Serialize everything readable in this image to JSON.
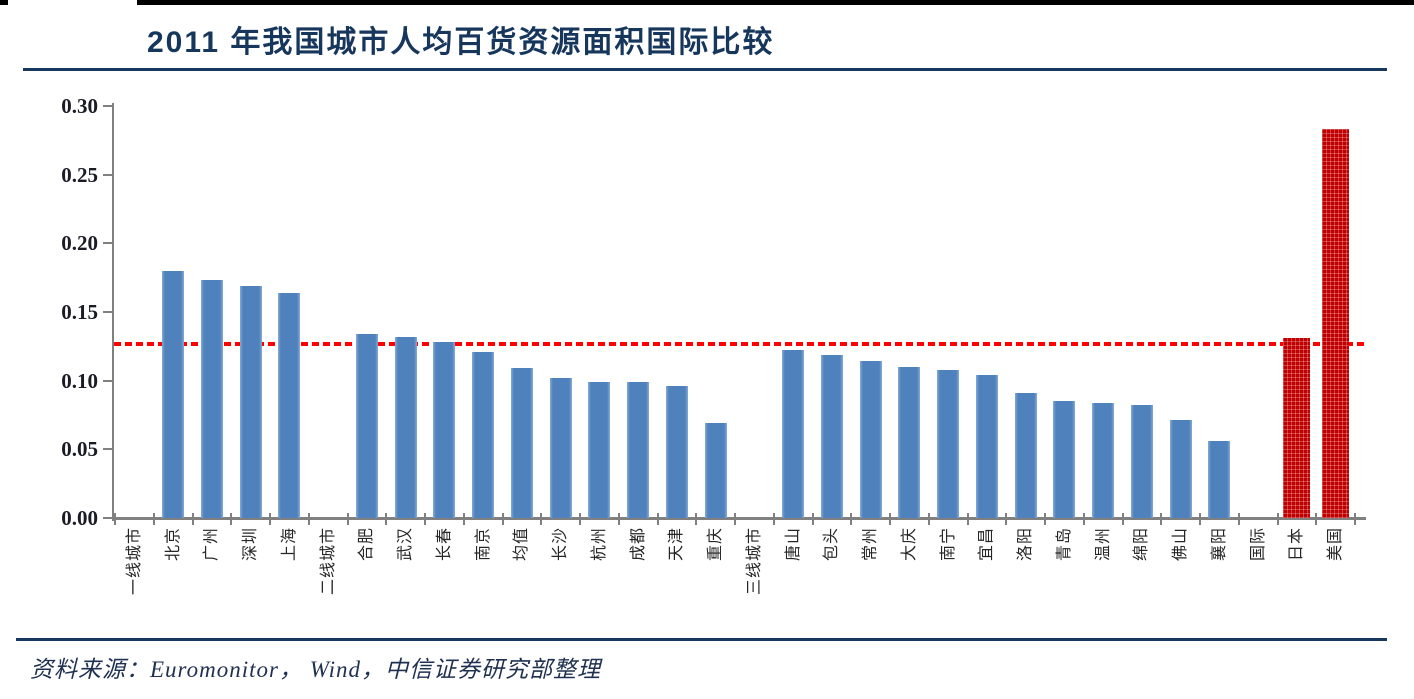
{
  "header": {
    "title": "2011 年我国城市人均百货资源面积国际比较"
  },
  "footer": {
    "source": "资料来源：Euromonitor， Wind，中信证券研究部整理"
  },
  "colors": {
    "bar_blue": "#4F81BD",
    "bar_red": "#C00000",
    "reference_line_red": "#FF0000",
    "axis_gray": "#808080",
    "title_navy": "#16365C",
    "rule_navy": "#17375E",
    "top_bar_black": "#000000"
  },
  "chart_data": {
    "type": "bar",
    "title": "2011 年我国城市人均百货资源面积国际比较",
    "xlabel": "",
    "ylabel": "",
    "ylim": [
      0,
      0.3
    ],
    "ytick_labels": [
      "0.30",
      "0.25",
      "0.20",
      "0.15",
      "0.10",
      "0.05",
      "0.00"
    ],
    "grid": false,
    "legend": null,
    "reference_line": {
      "value": 0.127,
      "style": "dashed",
      "color": "#FF0000"
    },
    "categories": [
      "一线城市",
      "北京",
      "广州",
      "深圳",
      "上海",
      "二线城市",
      "合肥",
      "武汉",
      "长春",
      "南京",
      "均值",
      "长沙",
      "杭州",
      "成都",
      "天津",
      "重庆",
      "三线城市",
      "唐山",
      "包头",
      "常州",
      "大庆",
      "南宁",
      "宜昌",
      "洛阳",
      "青岛",
      "温州",
      "绵阳",
      "佛山",
      "襄阳",
      "国际",
      "日本",
      "美国"
    ],
    "values": [
      null,
      0.18,
      0.173,
      0.169,
      0.164,
      null,
      0.134,
      0.132,
      0.128,
      0.121,
      0.109,
      0.102,
      0.099,
      0.099,
      0.096,
      0.069,
      null,
      0.122,
      0.119,
      0.114,
      0.11,
      0.108,
      0.104,
      0.091,
      0.085,
      0.084,
      0.082,
      0.071,
      0.056,
      null,
      0.131,
      0.283
    ],
    "group_labels_without_bars": [
      "一线城市",
      "二线城市",
      "三线城市",
      "国际"
    ],
    "highlight_categories": [
      "日本",
      "美国"
    ],
    "bar_color_default": "#4F81BD",
    "bar_color_highlight": "#C00000"
  }
}
